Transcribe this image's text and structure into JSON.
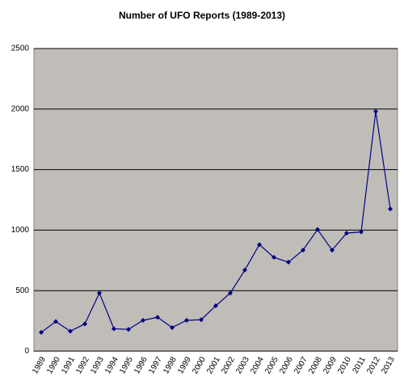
{
  "chart_data": {
    "type": "line",
    "title": "Number of UFO Reports (1989-2013)",
    "categories": [
      "1989",
      "1990",
      "1991",
      "1992",
      "1993",
      "1994",
      "1995",
      "1996",
      "1997",
      "1998",
      "1999",
      "2000",
      "2001",
      "2002",
      "2003",
      "2004",
      "2005",
      "2006",
      "2007",
      "2008",
      "2009",
      "2010",
      "2011",
      "2012",
      "2013"
    ],
    "values": [
      155,
      245,
      165,
      225,
      480,
      185,
      180,
      255,
      280,
      195,
      255,
      260,
      375,
      480,
      670,
      880,
      775,
      735,
      835,
      1005,
      835,
      975,
      985,
      1980,
      1175
    ],
    "color": "#000080",
    "plot_background": "#c0bdb9",
    "ylim": [
      0,
      2500
    ],
    "yticks": [
      0,
      500,
      1000,
      1500,
      2000,
      2500
    ],
    "grid": true
  }
}
